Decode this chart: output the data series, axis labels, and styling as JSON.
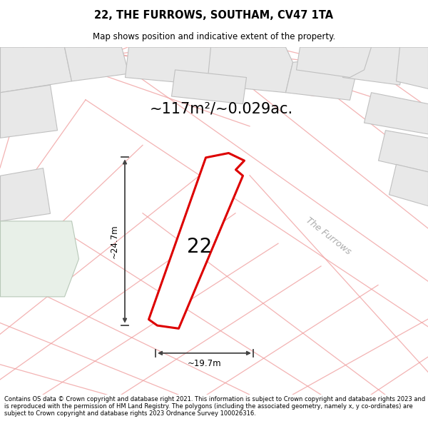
{
  "title": "22, THE FURROWS, SOUTHAM, CV47 1TA",
  "subtitle": "Map shows position and indicative extent of the property.",
  "area_text": "~117m²/~0.029ac.",
  "plot_number": "22",
  "width_label": "~19.7m",
  "height_label": "~24.7m",
  "road_label": "The Furrows",
  "footer": "Contains OS data © Crown copyright and database right 2021. This information is subject to Crown copyright and database rights 2023 and is reproduced with the permission of HM Land Registry. The polygons (including the associated geometry, namely x, y co-ordinates) are subject to Crown copyright and database rights 2023 Ordnance Survey 100026316.",
  "bg_color": "#ffffff",
  "map_bg": "#f8f8f8",
  "plot_fill": "#ffffff",
  "plot_edge": "#dd0000",
  "neighbor_fill": "#e8e8e8",
  "neighbor_edge": "#c0c0c0",
  "road_line_color": "#f0a0a0",
  "grid_line_color": "#f0a0a0",
  "green_fill": "#e8f0e8",
  "road_label_color": "#aaaaaa",
  "arrow_color": "#444444"
}
